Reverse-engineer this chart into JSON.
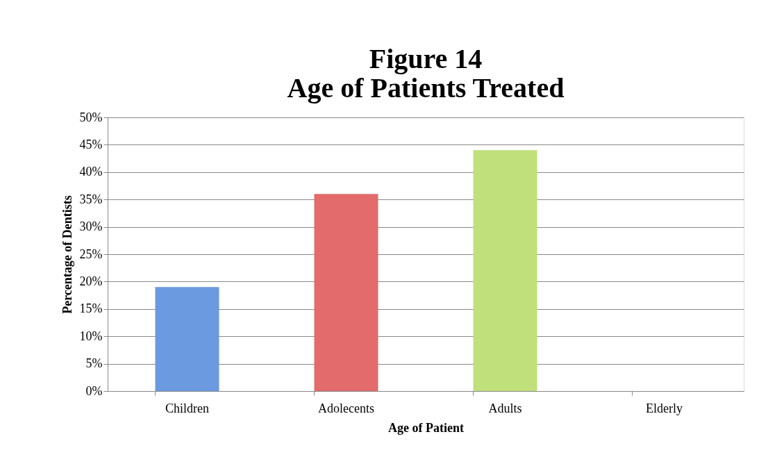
{
  "chart_data": {
    "type": "bar",
    "title": "Figure 14\nAge of Patients Treated",
    "xlabel": "Age of Patient",
    "ylabel": "Percentage  of Dentists",
    "categories": [
      "Children",
      "Adolecents",
      "Adults",
      "Elderly"
    ],
    "values": [
      19,
      36,
      44,
      0
    ],
    "colors": [
      "#6b9ae0",
      "#e36b6b",
      "#bfe07a",
      "#9bbb59"
    ],
    "ylim": [
      0,
      50
    ],
    "yticks": [
      {
        "value": 0,
        "label": "0%"
      },
      {
        "value": 5,
        "label": "5%"
      },
      {
        "value": 10,
        "label": "10%"
      },
      {
        "value": 15,
        "label": "15%"
      },
      {
        "value": 20,
        "label": "20%"
      },
      {
        "value": 25,
        "label": "25%"
      },
      {
        "value": 30,
        "label": "30%"
      },
      {
        "value": 35,
        "label": "35%"
      },
      {
        "value": 40,
        "label": "40%"
      },
      {
        "value": 45,
        "label": "45%"
      },
      {
        "value": 50,
        "label": "50%"
      }
    ],
    "grid": "y"
  }
}
